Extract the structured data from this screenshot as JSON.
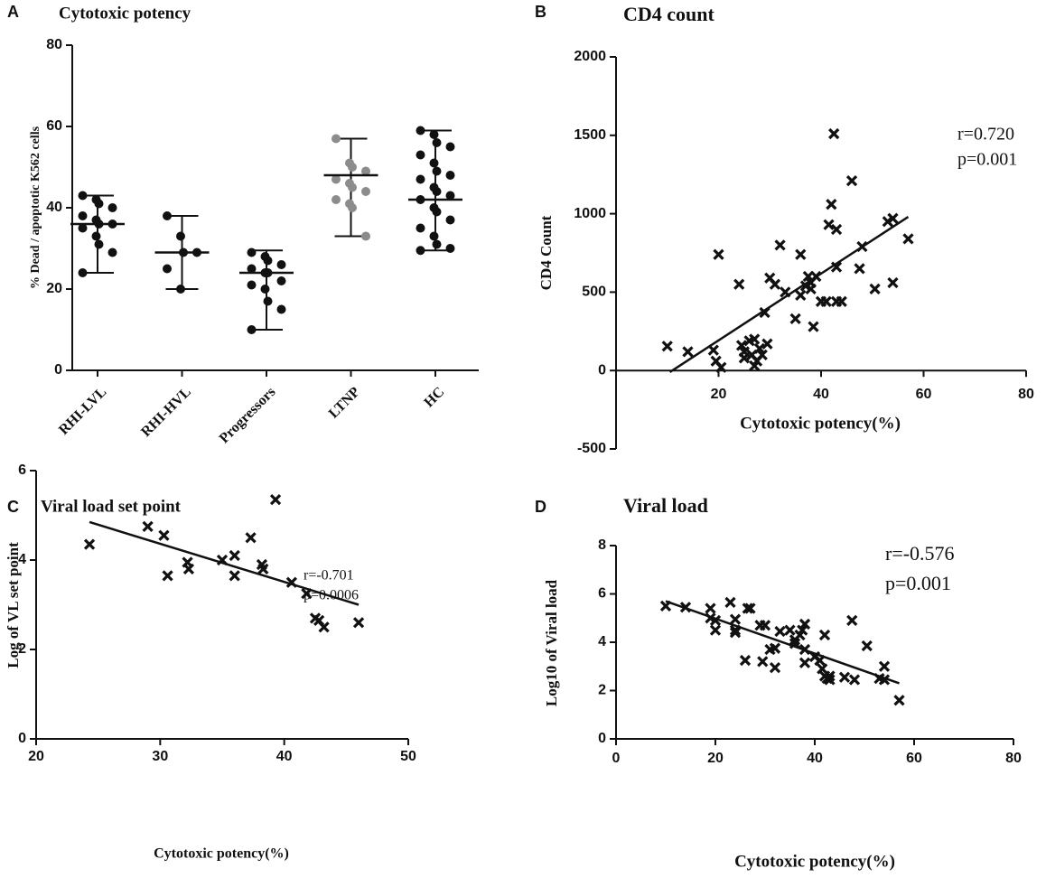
{
  "chart_data": [
    {
      "type": "dotplot",
      "panel": "A",
      "title": "Cytotoxic potency",
      "ylabel": "% Dead / apoptotic K562 cells",
      "categories": [
        "RHI-LVL",
        "RHI-HVL",
        "Progressors",
        "LTNP",
        "HC"
      ],
      "colors": [
        "#111111",
        "#111111",
        "#111111",
        "#8c8c8c",
        "#111111"
      ],
      "values": [
        [
          43,
          42,
          41,
          40,
          38,
          37,
          36,
          36,
          35,
          33,
          31,
          29,
          24
        ],
        [
          38,
          33,
          29,
          29,
          25,
          20
        ],
        [
          29,
          28,
          27,
          26,
          25,
          24,
          24,
          22,
          21,
          20,
          17,
          15,
          10
        ],
        [
          57,
          51,
          50,
          49,
          47,
          46,
          45,
          44,
          42,
          41,
          40,
          33
        ],
        [
          59,
          58,
          56,
          55,
          53,
          51,
          49,
          48,
          47,
          45,
          44,
          43,
          42,
          40,
          39,
          37,
          35,
          33,
          31,
          30,
          29.5
        ]
      ],
      "means": [
        36,
        29,
        24,
        48,
        42
      ],
      "ranges": [
        [
          24,
          43
        ],
        [
          20,
          38
        ],
        [
          10,
          29.5
        ],
        [
          33,
          57
        ],
        [
          29.5,
          59
        ]
      ],
      "ylim": [
        0,
        80
      ],
      "yticks": [
        0,
        20,
        40,
        60,
        80
      ]
    },
    {
      "type": "scatter",
      "panel": "B",
      "title": "CD4 count",
      "xlabel": "Cytotoxic potency(%)",
      "ylabel": "CD4 Count",
      "color": "#111111",
      "annotations": [
        "r=0.720",
        "p=0.001"
      ],
      "x": [
        10,
        14,
        19,
        20,
        19.5,
        20.5,
        24,
        24.5,
        25,
        25,
        26,
        26.5,
        27,
        27,
        27.5,
        28,
        28.5,
        29,
        29.5,
        30,
        31,
        32,
        33,
        35,
        36,
        36,
        37,
        37.5,
        38,
        38,
        38.5,
        39,
        40,
        41,
        41.5,
        42,
        42.5,
        43,
        43,
        43,
        44,
        46,
        47.5,
        48,
        50.5,
        53,
        54,
        54,
        57
      ],
      "y": [
        155,
        120,
        130,
        740,
        60,
        20,
        550,
        160,
        120,
        80,
        190,
        100,
        30,
        200,
        60,
        140,
        100,
        370,
        170,
        590,
        550,
        800,
        500,
        330,
        480,
        740,
        540,
        600,
        520,
        560,
        280,
        600,
        440,
        440,
        930,
        1060,
        1510,
        440,
        660,
        900,
        440,
        1210,
        650,
        790,
        520,
        950,
        970,
        560,
        840
      ],
      "fit": {
        "x": [
          10.5,
          57
        ],
        "y": [
          -10,
          980
        ]
      },
      "xlim": [
        0,
        80
      ],
      "xticks": [
        20,
        40,
        60,
        80
      ],
      "ylim": [
        -500,
        2000
      ],
      "yticks": [
        -500,
        0,
        500,
        1000,
        1500,
        2000
      ]
    },
    {
      "type": "scatter",
      "panel": "C",
      "title": "Viral load set point",
      "xlabel": "Cytotoxic potency(%)",
      "ylabel": "Log of VL set point",
      "color": "#111111",
      "annotations": [
        "r=-0.701",
        "p=0.0006"
      ],
      "x": [
        24.3,
        29,
        30.3,
        30.6,
        32.2,
        32.3,
        35,
        36,
        36,
        37.3,
        38.2,
        38.3,
        39.3,
        40.6,
        41.8,
        42.5,
        42.8,
        43.2,
        46
      ],
      "y": [
        4.35,
        4.75,
        4.55,
        3.65,
        3.95,
        3.8,
        4.0,
        4.1,
        3.65,
        4.5,
        3.9,
        3.8,
        5.35,
        3.5,
        3.25,
        2.7,
        2.65,
        2.5,
        2.6
      ],
      "fit": {
        "x": [
          24.3,
          46
        ],
        "y": [
          4.85,
          3.0
        ]
      },
      "xlim": [
        20,
        50
      ],
      "xticks": [
        20,
        30,
        40,
        50
      ],
      "ylim": [
        0,
        6
      ],
      "yticks": [
        0,
        2,
        4,
        6
      ]
    },
    {
      "type": "scatter",
      "panel": "D",
      "title": "Viral load",
      "xlabel": "Cytotoxic potency(%)",
      "ylabel": "Log10 of Viral load",
      "color": "#111111",
      "annotations": [
        "r=-0.576",
        "p=0.001"
      ],
      "x": [
        10,
        14,
        19,
        19,
        20,
        20,
        23,
        24,
        24,
        24,
        26,
        26.5,
        27,
        29,
        29.5,
        30,
        31,
        32,
        32,
        33,
        35,
        36,
        36,
        37,
        37.5,
        38,
        38,
        38,
        40,
        41,
        41.5,
        42,
        42,
        42.5,
        43,
        43,
        46,
        47.5,
        48,
        50.5,
        53,
        54,
        54,
        57
      ],
      "y": [
        5.5,
        5.45,
        5.4,
        5.0,
        4.9,
        4.5,
        5.65,
        4.95,
        4.5,
        4.4,
        3.25,
        5.4,
        5.4,
        4.7,
        3.2,
        4.7,
        3.7,
        2.95,
        3.75,
        4.45,
        4.5,
        4.1,
        3.95,
        4.3,
        4.5,
        3.15,
        3.7,
        4.75,
        3.4,
        3.25,
        2.9,
        4.3,
        2.6,
        2.5,
        2.6,
        2.45,
        2.55,
        4.9,
        2.45,
        3.85,
        2.5,
        3.0,
        2.45,
        1.6
      ],
      "fit": {
        "x": [
          10,
          57
        ],
        "y": [
          5.7,
          2.3
        ]
      },
      "xlim": [
        0,
        80
      ],
      "xticks": [
        0,
        20,
        40,
        60,
        80
      ],
      "ylim": [
        0,
        8
      ],
      "yticks": [
        0,
        2,
        4,
        6,
        8
      ]
    }
  ]
}
